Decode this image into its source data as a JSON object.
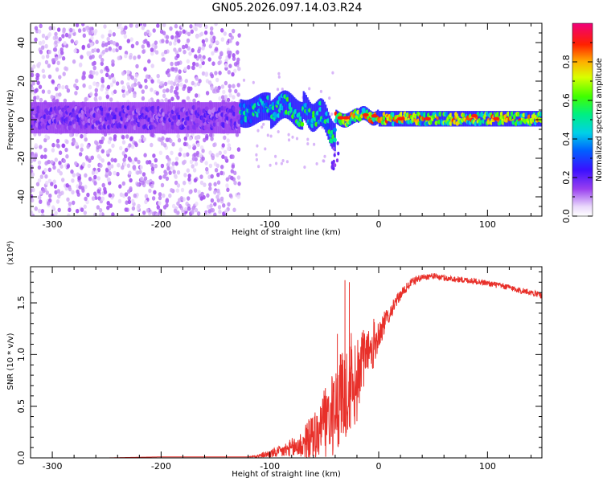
{
  "title": "GN05.2026.097.14.03.R24",
  "chart_data": [
    {
      "type": "heatmap",
      "name": "spectrogram",
      "xlabel": "Height of straight line (km)",
      "ylabel": "Frequency (Hz)",
      "xlim": [
        -320,
        150
      ],
      "ylim": [
        -50,
        50
      ],
      "xticks": [
        -300,
        -200,
        -100,
        0,
        100
      ],
      "yticks": [
        -40,
        -20,
        0,
        20,
        40
      ],
      "colorbar": {
        "label": "Normalized spectral amplitude",
        "range": [
          0,
          1
        ],
        "ticks": [
          "0.0",
          "0.2",
          "0.4",
          "0.6",
          "0.8"
        ],
        "colormap": "rainbow (white-violet-blue-cyan-green-yellow-orange-red-magenta)"
      },
      "bands": [
        {
          "x_range": [
            -320,
            -128
          ],
          "center_hz": 0,
          "core_width_hz": 10,
          "scatter_hz": [
            -50,
            50
          ],
          "amplitude": 0.15,
          "description": "noisy violet-blue band with sparse scatter across full frequency range"
        },
        {
          "x_range": [
            -128,
            -40
          ],
          "center_hz": 5,
          "core_width_hz": 10,
          "amplitude": 0.45,
          "description": "blue/green band near +5 Hz dipping to about -10 Hz at -45 km"
        },
        {
          "x_range": [
            -40,
            0
          ],
          "center_hz": 1,
          "core_width_hz": 4,
          "amplitude": 0.8,
          "description": "narrowing band with red peaks near -35, -10 and -2 km"
        },
        {
          "x_range": [
            0,
            150
          ],
          "center_hz": 0,
          "core_width_hz": 5,
          "amplitude": 0.7,
          "description": "steady cyan/green band with red core near 0 Hz"
        }
      ]
    },
    {
      "type": "line",
      "name": "snr",
      "xlabel": "Height of straight line (km)",
      "ylabel": "SNR (10 * v/v)",
      "y_multiplier": "(x10⁴)",
      "xlim": [
        -320,
        150
      ],
      "ylim": [
        0,
        1.85
      ],
      "xticks": [
        -300,
        -200,
        -100,
        0,
        100
      ],
      "yticks": [
        "0.0",
        "0.5",
        "1.0",
        "1.5"
      ],
      "color": "#e8302a",
      "series": [
        {
          "x": [
            -320,
            -250,
            -200,
            -150,
            -120,
            -110,
            -100,
            -90,
            -80,
            -70,
            -60,
            -50,
            -40,
            -30,
            -20,
            -10,
            0,
            10,
            20,
            30,
            40,
            50,
            60,
            70,
            80,
            90,
            100,
            110,
            120,
            130,
            140,
            150
          ],
          "values": [
            0.0,
            0.0,
            0.01,
            0.01,
            0.01,
            0.02,
            0.04,
            0.06,
            0.09,
            0.13,
            0.2,
            0.32,
            0.45,
            0.62,
            0.8,
            1.0,
            1.2,
            1.4,
            1.58,
            1.7,
            1.75,
            1.76,
            1.74,
            1.73,
            1.72,
            1.71,
            1.69,
            1.67,
            1.65,
            1.62,
            1.6,
            1.57
          ],
          "noise_amplitude": [
            0,
            0,
            0,
            0,
            0,
            0.02,
            0.04,
            0.06,
            0.1,
            0.15,
            0.25,
            0.35,
            0.45,
            0.55,
            0.45,
            0.35,
            0.15,
            0.08,
            0.05,
            0.04,
            0.03,
            0.03,
            0.03,
            0.03,
            0.03,
            0.03,
            0.03,
            0.03,
            0.03,
            0.03,
            0.03,
            0.03
          ]
        }
      ]
    }
  ]
}
